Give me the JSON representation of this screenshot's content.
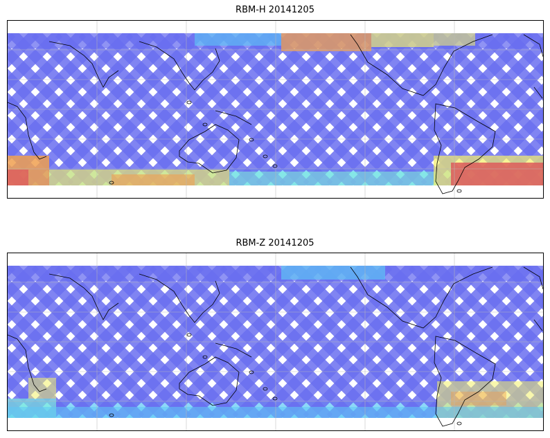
{
  "panels": [
    {
      "title": "RBM-H 20141205",
      "intensity_zones": [
        {
          "where": "south-west high latitudes",
          "level": 0.85
        },
        {
          "where": "south-central high latitudes",
          "level": 0.6
        },
        {
          "where": "south-east high latitudes (south of South America)",
          "level": 0.95
        },
        {
          "where": "north-central high latitudes (north Pacific)",
          "level": 0.75
        }
      ]
    },
    {
      "title": "RBM-Z 20141205",
      "intensity_zones": [
        {
          "where": "south-west high latitudes",
          "level": 0.45
        },
        {
          "where": "south-east high latitudes (south of South America)",
          "level": 0.6
        }
      ]
    }
  ],
  "colormap": {
    "low": "#6a6ff0",
    "mid_low": "#5cc8f5",
    "mid": "#7ff3d8",
    "mid_high": "#f3f06a",
    "high": "#f0a050",
    "max": "#dd5c5c"
  },
  "gridlines": true,
  "coastline_color": "#000000"
}
